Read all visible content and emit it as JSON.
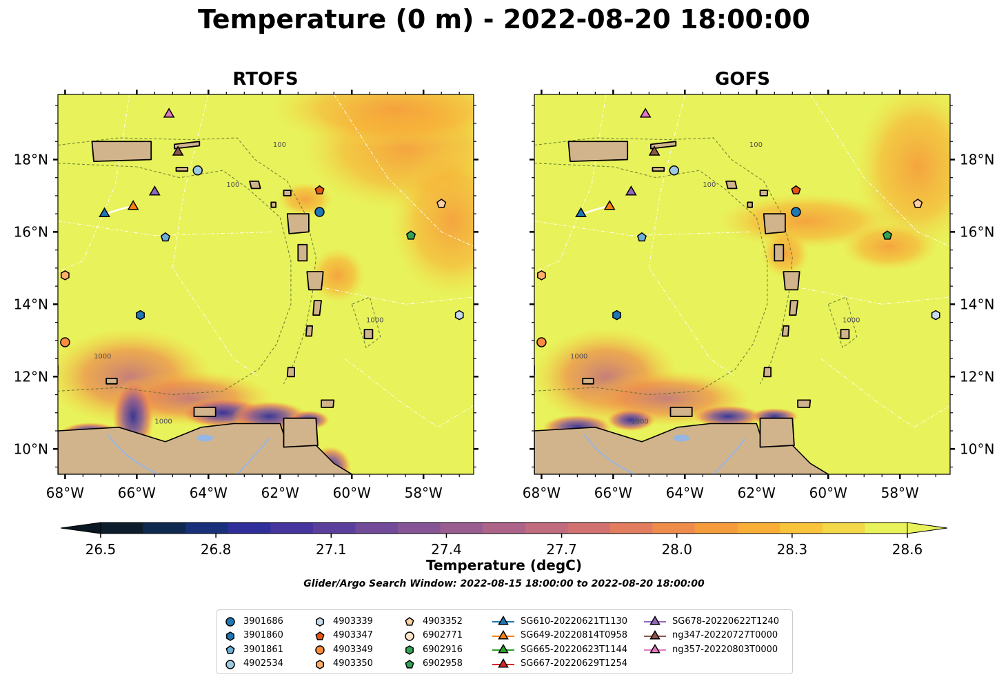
{
  "title": "Temperature (0 m) - 2022-08-20 18:00:00",
  "panels": [
    {
      "name": "RTOFS"
    },
    {
      "name": "GOFS"
    }
  ],
  "map_extent": {
    "lon": [
      -68.2,
      -56.6
    ],
    "lat": [
      9.3,
      19.8
    ]
  },
  "axes": {
    "lon_ticks": [
      {
        "value": -68,
        "label": "68°W"
      },
      {
        "value": -66,
        "label": "66°W"
      },
      {
        "value": -64,
        "label": "64°W"
      },
      {
        "value": -62,
        "label": "62°W"
      },
      {
        "value": -60,
        "label": "60°W"
      },
      {
        "value": -58,
        "label": "58°W"
      }
    ],
    "lat_ticks": [
      {
        "value": 10,
        "label": "10°N"
      },
      {
        "value": 12,
        "label": "12°N"
      },
      {
        "value": 14,
        "label": "14°N"
      },
      {
        "value": 16,
        "label": "16°N"
      },
      {
        "value": 18,
        "label": "18°N"
      }
    ]
  },
  "colorbar": {
    "label": "Temperature (degC)",
    "ticks": [
      {
        "value": 26.5,
        "label": "26.5"
      },
      {
        "value": 26.8,
        "label": "26.8"
      },
      {
        "value": 27.1,
        "label": "27.1"
      },
      {
        "value": 27.4,
        "label": "27.4"
      },
      {
        "value": 27.7,
        "label": "27.7"
      },
      {
        "value": 28.0,
        "label": "28.0"
      },
      {
        "value": 28.3,
        "label": "28.3"
      },
      {
        "value": 28.6,
        "label": "28.6"
      }
    ],
    "range": [
      26.5,
      28.6
    ],
    "levels": 22,
    "colormap": [
      "#0d1d2b",
      "#0f2a4e",
      "#18317a",
      "#2f2e9a",
      "#46359e",
      "#5b3f9c",
      "#714a99",
      "#865595",
      "#9a5d8f",
      "#ad6488",
      "#c06b7e",
      "#d27270",
      "#e27d5f",
      "#ee8c4c",
      "#f59c3c",
      "#f9ae35",
      "#f9c33a",
      "#f2d848",
      "#e8f25a"
    ],
    "extend": "both"
  },
  "search_window": "Glider/Argo Search Window: 2022-08-15 18:00:00 to 2022-08-20 18:00:00",
  "land_color": "#d2b48c",
  "contour_labels": [
    "100",
    "1000"
  ],
  "observations": [
    {
      "id": "3901686",
      "marker": "circle",
      "color": "#1f77b4",
      "lon": -60.9,
      "lat": 16.55
    },
    {
      "id": "3901860",
      "marker": "hexagon",
      "color": "#1f77b4",
      "lon": -65.9,
      "lat": 13.7
    },
    {
      "id": "3901861",
      "marker": "pentagon",
      "color": "#6baed6",
      "lon": -65.2,
      "lat": 15.85
    },
    {
      "id": "4902534",
      "marker": "circle",
      "color": "#9ecae1",
      "lon": -64.3,
      "lat": 17.7
    },
    {
      "id": "4903339",
      "marker": "hexagon",
      "color": "#c6dbef",
      "lon": -57.0,
      "lat": 13.7
    },
    {
      "id": "4903347",
      "marker": "pentagon",
      "color": "#e6550d",
      "lon": -60.9,
      "lat": 17.15
    },
    {
      "id": "4903349",
      "marker": "circle",
      "color": "#fd8d3c",
      "lon": -68.0,
      "lat": 12.95
    },
    {
      "id": "4903350",
      "marker": "hexagon",
      "color": "#fdae6b",
      "lon": -68.0,
      "lat": 14.8
    },
    {
      "id": "4903352",
      "marker": "pentagon",
      "color": "#fdd0a2",
      "lon": -57.5,
      "lat": 16.78
    },
    {
      "id": "6902771",
      "marker": "circle",
      "color": "#fde4c8",
      "lon": null,
      "lat": null
    },
    {
      "id": "6902916",
      "marker": "hexagon",
      "color": "#31a354",
      "lon": null,
      "lat": null
    },
    {
      "id": "6902958",
      "marker": "pentagon",
      "color": "#31a354",
      "lon": -58.35,
      "lat": 15.9
    },
    {
      "id": "SG610-20220621T1130",
      "marker": "triangle",
      "color": "#1f77b4",
      "lon": -66.9,
      "lat": 16.5
    },
    {
      "id": "SG649-20220814T0958",
      "marker": "triangle",
      "color": "#ff7f0e",
      "lon": -66.1,
      "lat": 16.7
    },
    {
      "id": "SG665-20220623T1144",
      "marker": "triangle",
      "color": "#2ca02c",
      "lon": null,
      "lat": null
    },
    {
      "id": "SG667-20220629T1254",
      "marker": "triangle",
      "color": "#d62728",
      "lon": null,
      "lat": null
    },
    {
      "id": "SG678-20220622T1240",
      "marker": "triangle",
      "color": "#9467bd",
      "lon": -65.5,
      "lat": 17.1
    },
    {
      "id": "ng347-20220727T0000",
      "marker": "triangle",
      "color": "#8c564b",
      "lon": -64.85,
      "lat": 18.2
    },
    {
      "id": "ng357-20220803T0000",
      "marker": "triangle",
      "color": "#e377c2",
      "lon": -65.1,
      "lat": 19.25
    }
  ]
}
